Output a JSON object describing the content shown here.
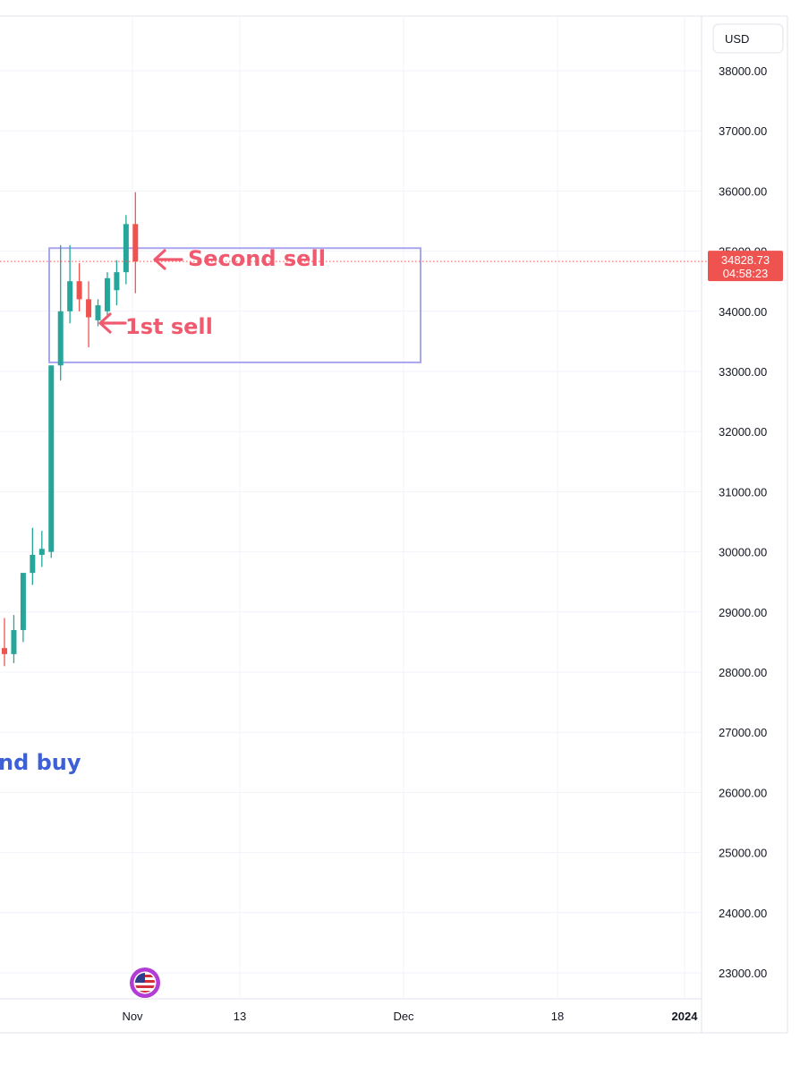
{
  "chart_data": {
    "type": "candlestick",
    "currency": "USD",
    "y_ticks": [
      23000,
      24000,
      25000,
      26000,
      27000,
      28000,
      29000,
      30000,
      31000,
      32000,
      33000,
      34000,
      35000,
      36000,
      37000,
      38000
    ],
    "y_tick_labels": [
      "23000.00",
      "24000.00",
      "25000.00",
      "26000.00",
      "27000.00",
      "28000.00",
      "29000.00",
      "30000.00",
      "31000.00",
      "32000.00",
      "33000.00",
      "34000.00",
      "35000.00",
      "36000.00",
      "37000.00",
      "38000.00"
    ],
    "ylim": [
      22700,
      38500
    ],
    "x_labels": [
      {
        "label": "Nov",
        "bold": false
      },
      {
        "label": "13",
        "bold": false
      },
      {
        "label": "Dec",
        "bold": false
      },
      {
        "label": "18",
        "bold": false
      },
      {
        "label": "2024",
        "bold": true
      }
    ],
    "current_price": 34828.73,
    "current_price_label": "34828.73",
    "countdown": "04:58:23",
    "candles": [
      {
        "o": 28400,
        "h": 28900,
        "l": 28100,
        "c": 28300
      },
      {
        "o": 28300,
        "h": 28950,
        "l": 28150,
        "c": 28700
      },
      {
        "o": 28700,
        "h": 29650,
        "l": 28500,
        "c": 29650
      },
      {
        "o": 29650,
        "h": 30400,
        "l": 29450,
        "c": 29950
      },
      {
        "o": 29950,
        "h": 30350,
        "l": 29750,
        "c": 30050
      },
      {
        "o": 30000,
        "h": 33100,
        "l": 29900,
        "c": 33100
      },
      {
        "o": 33100,
        "h": 35100,
        "l": 32850,
        "c": 34000
      },
      {
        "o": 34000,
        "h": 35100,
        "l": 33800,
        "c": 34500
      },
      {
        "o": 34500,
        "h": 34800,
        "l": 34000,
        "c": 34200
      },
      {
        "o": 34200,
        "h": 34500,
        "l": 33400,
        "c": 33900
      },
      {
        "o": 33850,
        "h": 34200,
        "l": 33750,
        "c": 34100
      },
      {
        "o": 34000,
        "h": 34650,
        "l": 33900,
        "c": 34550
      },
      {
        "o": 34350,
        "h": 34850,
        "l": 34100,
        "c": 34650
      },
      {
        "o": 34650,
        "h": 35600,
        "l": 34450,
        "c": 35450
      },
      {
        "o": 35450,
        "h": 35980,
        "l": 34300,
        "c": 34830
      }
    ],
    "annotations": [
      {
        "text": "Second sell",
        "color": "#f05a6e"
      },
      {
        "text": "1st sell",
        "color": "#f05a6e"
      },
      {
        "text": "nd buy",
        "color": "#3d5fd8"
      }
    ],
    "range_box": {
      "top": 35050,
      "bottom": 33150,
      "color": "#a9a6f0"
    },
    "colors": {
      "up": "#26a69a",
      "down": "#ef5350",
      "grid": "#f0f3fa",
      "price_line": "#ef5350"
    }
  }
}
